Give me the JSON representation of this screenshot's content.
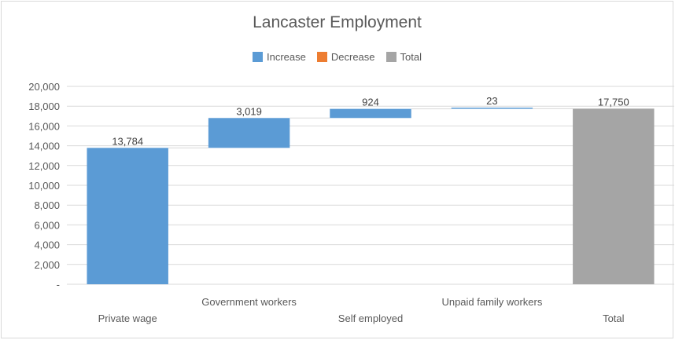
{
  "chart_data": {
    "type": "waterfall",
    "title": "Lancaster Employment",
    "legend": [
      {
        "label": "Increase",
        "color": "#5b9bd5"
      },
      {
        "label": "Decrease",
        "color": "#ed7d31"
      },
      {
        "label": "Total",
        "color": "#a5a5a5"
      }
    ],
    "legend_position": "top",
    "categories": [
      "Private wage",
      "Government workers",
      "Self employed",
      "Unpaid family workers",
      "Total"
    ],
    "values": [
      13784,
      3019,
      924,
      23,
      17750
    ],
    "data_labels": [
      "13,784",
      "3,019",
      "924",
      "23",
      "17,750"
    ],
    "bar_types": [
      "increase",
      "increase",
      "increase",
      "increase",
      "total"
    ],
    "ylim": [
      0,
      20000
    ],
    "y_ticks": [
      0,
      2000,
      4000,
      6000,
      8000,
      10000,
      12000,
      14000,
      16000,
      18000,
      20000
    ],
    "y_tick_labels": [
      "-",
      "2,000",
      "4,000",
      "6,000",
      "8,000",
      "10,000",
      "12,000",
      "14,000",
      "16,000",
      "18,000",
      "20,000"
    ],
    "grid": true,
    "xlabel": "",
    "ylabel": ""
  }
}
